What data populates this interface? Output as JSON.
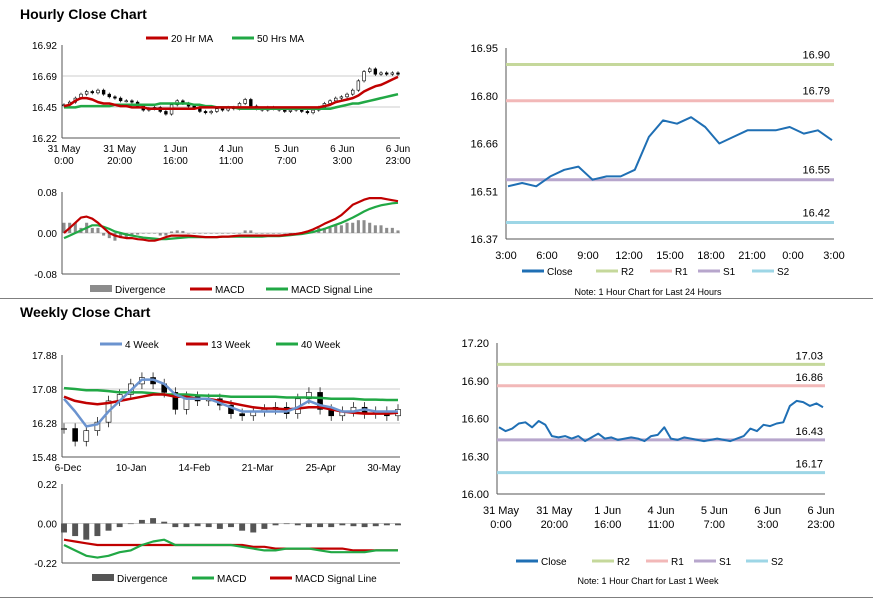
{
  "sections": {
    "hourly_title": "Hourly Close Chart",
    "weekly_title": "Weekly Close Chart"
  },
  "colors": {
    "close": "#1f6fb4",
    "ma20": "#c00000",
    "ma50": "#21a845",
    "r2": "#c5d89b",
    "r1": "#f2b8b8",
    "s1": "#b7a6cc",
    "s2": "#9dd6e6",
    "divergence": "#8c8c8c",
    "grid": "#999999"
  },
  "chart_data": [
    {
      "id": "hourly_price",
      "type": "candlestick",
      "title": "Hourly Close Chart",
      "y_ticks": [
        "16.92",
        "16.69",
        "16.45",
        "16.22"
      ],
      "ylim": [
        16.22,
        16.92
      ],
      "x_ticks": [
        {
          "l1": "31 May",
          "l2": "0:00"
        },
        {
          "l1": "31 May",
          "l2": "20:00"
        },
        {
          "l1": "1 Jun",
          "l2": "16:00"
        },
        {
          "l1": "4 Jun",
          "l2": "11:00"
        },
        {
          "l1": "5 Jun",
          "l2": "7:00"
        },
        {
          "l1": "6 Jun",
          "l2": "3:00"
        },
        {
          "l1": "6 Jun",
          "l2": "23:00"
        }
      ],
      "legend": [
        "20 Hr MA",
        "50 Hrs MA"
      ],
      "close": [
        16.47,
        16.49,
        16.52,
        16.55,
        16.57,
        16.56,
        16.58,
        16.55,
        16.53,
        16.52,
        16.5,
        16.5,
        16.49,
        16.46,
        16.43,
        16.44,
        16.45,
        16.42,
        16.4,
        16.47,
        16.5,
        16.48,
        16.46,
        16.45,
        16.42,
        16.41,
        16.42,
        16.44,
        16.43,
        16.45,
        16.44,
        16.48,
        16.51,
        16.46,
        16.44,
        16.43,
        16.45,
        16.44,
        16.43,
        16.42,
        16.43,
        16.44,
        16.42,
        16.41,
        16.43,
        16.45,
        16.48,
        16.5,
        16.52,
        16.53,
        16.55,
        16.58,
        16.65,
        16.72,
        16.74,
        16.7,
        16.71,
        16.7,
        16.71,
        16.7
      ],
      "ma20": [
        16.46,
        16.47,
        16.5,
        16.52,
        16.52,
        16.51,
        16.49,
        16.48,
        16.48,
        16.47,
        16.46,
        16.46,
        16.45,
        16.45,
        16.45,
        16.44,
        16.44,
        16.44,
        16.44,
        16.44,
        16.44,
        16.44,
        16.44,
        16.44,
        16.45,
        16.45,
        16.45,
        16.45,
        16.45,
        16.45,
        16.45,
        16.45,
        16.45,
        16.45,
        16.45,
        16.45,
        16.45,
        16.45,
        16.45,
        16.45,
        16.45,
        16.45,
        16.45,
        16.45,
        16.45,
        16.45,
        16.46,
        16.47,
        16.49,
        16.5,
        16.51,
        16.52,
        16.54,
        16.57,
        16.59,
        16.61,
        16.62,
        16.64,
        16.66,
        16.68
      ],
      "ma50": [
        16.45,
        16.45,
        16.45,
        16.46,
        16.46,
        16.46,
        16.46,
        16.46,
        16.46,
        16.47,
        16.47,
        16.47,
        16.47,
        16.47,
        16.47,
        16.47,
        16.47,
        16.48,
        16.48,
        16.48,
        16.48,
        16.48,
        16.48,
        16.47,
        16.47,
        16.46,
        16.46,
        16.45,
        16.45,
        16.45,
        16.45,
        16.44,
        16.44,
        16.44,
        16.44,
        16.44,
        16.44,
        16.44,
        16.44,
        16.44,
        16.44,
        16.44,
        16.44,
        16.44,
        16.44,
        16.44,
        16.44,
        16.44,
        16.45,
        16.46,
        16.47,
        16.48,
        16.48,
        16.49,
        16.5,
        16.51,
        16.52,
        16.53,
        16.54,
        16.55
      ]
    },
    {
      "id": "hourly_macd",
      "type": "bar+line",
      "y_ticks": [
        "0.08",
        "0.00",
        "-0.08"
      ],
      "ylim": [
        -0.08,
        0.08
      ],
      "legend": [
        "Divergence",
        "MACD",
        "MACD Signal Line"
      ],
      "divergence": [
        0.02,
        0.02,
        0.02,
        0.01,
        0.02,
        0.01,
        0.01,
        -0.005,
        -0.01,
        -0.015,
        -0.01,
        -0.01,
        -0.005,
        -0.003,
        0.0,
        0.0,
        0.0,
        -0.005,
        -0.005,
        0.003,
        0.005,
        0.004,
        0.0,
        0.0,
        0.0,
        0.0,
        0.0,
        0.0,
        0.0,
        0.0,
        0.0,
        0.0,
        0.005,
        0.005,
        0.0,
        0.0,
        0.0,
        0.0,
        0.0,
        0.0,
        0.0,
        0.0,
        0.0,
        0.0,
        0.005,
        0.01,
        0.01,
        0.01,
        0.015,
        0.015,
        0.02,
        0.02,
        0.025,
        0.025,
        0.02,
        0.015,
        0.015,
        0.01,
        0.01,
        0.005
      ],
      "macd": [
        0.0,
        0.01,
        0.02,
        0.03,
        0.032,
        0.028,
        0.02,
        0.01,
        0.0,
        -0.005,
        -0.008,
        -0.01,
        -0.01,
        -0.012,
        -0.013,
        -0.015,
        -0.015,
        -0.012,
        -0.008,
        -0.005,
        -0.005,
        -0.005,
        -0.005,
        -0.006,
        -0.007,
        -0.008,
        -0.008,
        -0.008,
        -0.007,
        -0.007,
        -0.006,
        -0.005,
        -0.005,
        -0.005,
        -0.005,
        -0.005,
        -0.005,
        -0.005,
        -0.005,
        -0.004,
        -0.003,
        -0.002,
        0.0,
        0.003,
        0.007,
        0.012,
        0.018,
        0.023,
        0.028,
        0.035,
        0.045,
        0.055,
        0.06,
        0.065,
        0.068,
        0.068,
        0.068,
        0.066,
        0.064,
        0.062
      ],
      "signal": [
        -0.01,
        -0.005,
        0.0,
        0.005,
        0.01,
        0.015,
        0.015,
        0.012,
        0.008,
        0.003,
        0.0,
        -0.003,
        -0.005,
        -0.007,
        -0.009,
        -0.01,
        -0.011,
        -0.012,
        -0.012,
        -0.011,
        -0.01,
        -0.009,
        -0.008,
        -0.008,
        -0.008,
        -0.008,
        -0.008,
        -0.008,
        -0.007,
        -0.007,
        -0.007,
        -0.007,
        -0.007,
        -0.007,
        -0.007,
        -0.007,
        -0.006,
        -0.006,
        -0.006,
        -0.005,
        -0.004,
        -0.003,
        -0.002,
        0.0,
        0.002,
        0.005,
        0.008,
        0.012,
        0.016,
        0.02,
        0.025,
        0.03,
        0.036,
        0.042,
        0.047,
        0.051,
        0.054,
        0.056,
        0.058,
        0.059
      ]
    },
    {
      "id": "hourly_levels",
      "type": "line",
      "title": "",
      "y_ticks": [
        "16.95",
        "16.80",
        "16.66",
        "16.51",
        "16.37"
      ],
      "ylim": [
        16.37,
        16.95
      ],
      "x_ticks": [
        "3:00",
        "6:00",
        "9:00",
        "12:00",
        "15:00",
        "18:00",
        "21:00",
        "0:00",
        "3:00"
      ],
      "close": [
        16.53,
        16.54,
        16.53,
        16.56,
        16.58,
        16.59,
        16.55,
        16.56,
        16.56,
        16.58,
        16.68,
        16.73,
        16.72,
        16.74,
        16.71,
        16.66,
        16.68,
        16.7,
        16.7,
        16.7,
        16.71,
        16.69,
        16.7,
        16.67
      ],
      "levels": [
        {
          "name": "R2",
          "value": 16.9,
          "label": "16.90"
        },
        {
          "name": "R1",
          "value": 16.79,
          "label": "16.79"
        },
        {
          "name": "S1",
          "value": 16.55,
          "label": "16.55"
        },
        {
          "name": "S2",
          "value": 16.42,
          "label": "16.42"
        }
      ],
      "legend": [
        "Close",
        "R2",
        "R1",
        "S1",
        "S2"
      ],
      "note": "Note: 1 Hour Chart for Last 24 Hours"
    },
    {
      "id": "weekly_price",
      "type": "candlestick",
      "title": "Weekly Close Chart",
      "y_ticks": [
        "17.88",
        "17.08",
        "16.28",
        "15.48"
      ],
      "ylim": [
        15.48,
        17.88
      ],
      "x_ticks": [
        "6-Dec",
        "10-Jan",
        "14-Feb",
        "21-Mar",
        "25-Apr",
        "30-May"
      ],
      "legend": [
        "4 Week",
        "13 Week",
        "40 Week"
      ],
      "close": [
        16.15,
        15.85,
        16.1,
        16.3,
        16.8,
        16.95,
        17.2,
        17.35,
        17.2,
        17.0,
        16.6,
        16.9,
        16.8,
        16.85,
        16.7,
        16.5,
        16.45,
        16.55,
        16.6,
        16.65,
        16.5,
        16.85,
        17.0,
        16.6,
        16.45,
        16.55,
        16.65,
        16.5,
        16.55,
        16.45,
        16.6
      ],
      "w4": [
        16.85,
        16.55,
        16.2,
        16.25,
        16.55,
        16.8,
        17.05,
        17.3,
        17.3,
        17.2,
        16.95,
        16.85,
        16.85,
        16.85,
        16.75,
        16.65,
        16.55,
        16.55,
        16.55,
        16.55,
        16.55,
        16.65,
        16.8,
        16.7,
        16.65,
        16.55,
        16.55,
        16.6,
        16.55,
        16.55,
        16.55
      ],
      "w13": [
        16.9,
        16.8,
        16.75,
        16.72,
        16.75,
        16.8,
        16.85,
        16.9,
        16.95,
        16.95,
        16.9,
        16.9,
        16.85,
        16.85,
        16.8,
        16.75,
        16.7,
        16.65,
        16.62,
        16.62,
        16.6,
        16.62,
        16.65,
        16.65,
        16.6,
        16.55,
        16.52,
        16.5,
        16.5,
        16.5,
        16.52
      ],
      "w40": [
        17.1,
        17.08,
        17.05,
        17.05,
        17.03,
        17.0,
        17.0,
        17.0,
        16.98,
        16.95,
        16.95,
        16.95,
        16.93,
        16.92,
        16.92,
        16.9,
        16.9,
        16.9,
        16.9,
        16.9,
        16.88,
        16.88,
        16.88,
        16.87,
        16.85,
        16.85,
        16.85,
        16.83,
        16.83,
        16.82,
        16.82
      ]
    },
    {
      "id": "weekly_macd",
      "type": "bar+line",
      "y_ticks": [
        "0.22",
        "0.00",
        "-0.22"
      ],
      "ylim": [
        -0.22,
        0.22
      ],
      "legend": [
        "Divergence",
        "MACD",
        "MACD Signal Line"
      ],
      "divergence": [
        -0.05,
        -0.07,
        -0.09,
        -0.07,
        -0.04,
        -0.02,
        0.0,
        0.02,
        0.03,
        0.01,
        -0.02,
        -0.02,
        -0.015,
        -0.02,
        -0.03,
        -0.02,
        -0.04,
        -0.05,
        -0.03,
        -0.01,
        0.0,
        -0.01,
        -0.02,
        -0.02,
        -0.02,
        -0.01,
        -0.015,
        -0.02,
        -0.015,
        -0.01,
        -0.01
      ],
      "macd": [
        -0.12,
        -0.15,
        -0.18,
        -0.19,
        -0.18,
        -0.16,
        -0.15,
        -0.12,
        -0.1,
        -0.09,
        -0.12,
        -0.12,
        -0.12,
        -0.12,
        -0.12,
        -0.12,
        -0.13,
        -0.14,
        -0.15,
        -0.15,
        -0.14,
        -0.14,
        -0.14,
        -0.15,
        -0.16,
        -0.16,
        -0.16,
        -0.16,
        -0.15,
        -0.15,
        -0.15
      ],
      "signal": [
        -0.09,
        -0.1,
        -0.11,
        -0.12,
        -0.12,
        -0.12,
        -0.12,
        -0.12,
        -0.12,
        -0.12,
        -0.12,
        -0.12,
        -0.12,
        -0.12,
        -0.12,
        -0.12,
        -0.12,
        -0.13,
        -0.13,
        -0.14,
        -0.14,
        -0.14,
        -0.14,
        -0.14,
        -0.14,
        -0.14,
        -0.15,
        -0.15,
        -0.15,
        -0.15,
        -0.15
      ]
    },
    {
      "id": "weekly_levels",
      "type": "line",
      "title": "",
      "y_ticks": [
        "17.20",
        "16.90",
        "16.60",
        "16.30",
        "16.00"
      ],
      "ylim": [
        16.0,
        17.2
      ],
      "x_ticks": [
        {
          "l1": "31 May",
          "l2": "0:00"
        },
        {
          "l1": "31 May",
          "l2": "20:00"
        },
        {
          "l1": "1 Jun",
          "l2": "16:00"
        },
        {
          "l1": "4 Jun",
          "l2": "11:00"
        },
        {
          "l1": "5 Jun",
          "l2": "7:00"
        },
        {
          "l1": "6 Jun",
          "l2": "3:00"
        },
        {
          "l1": "6 Jun",
          "l2": "23:00"
        }
      ],
      "close": [
        16.53,
        16.5,
        16.52,
        16.56,
        16.57,
        16.53,
        16.58,
        16.55,
        16.46,
        16.45,
        16.46,
        16.44,
        16.46,
        16.42,
        16.45,
        16.48,
        16.44,
        16.45,
        16.43,
        16.44,
        16.45,
        16.44,
        16.42,
        16.46,
        16.47,
        16.53,
        16.44,
        16.43,
        16.45,
        16.44,
        16.43,
        16.42,
        16.43,
        16.44,
        16.43,
        16.42,
        16.44,
        16.46,
        16.52,
        16.5,
        16.55,
        16.54,
        16.56,
        16.57,
        16.7,
        16.74,
        16.73,
        16.7,
        16.72,
        16.69
      ],
      "levels": [
        {
          "name": "R2",
          "value": 17.03,
          "label": "17.03"
        },
        {
          "name": "R1",
          "value": 16.86,
          "label": "16.86"
        },
        {
          "name": "S1",
          "value": 16.43,
          "label": "16.43"
        },
        {
          "name": "S2",
          "value": 16.17,
          "label": "16.17"
        }
      ],
      "legend": [
        "Close",
        "R2",
        "R1",
        "S1",
        "S2"
      ],
      "note": "Note: 1 Hour Chart for Last 1 Week"
    }
  ]
}
